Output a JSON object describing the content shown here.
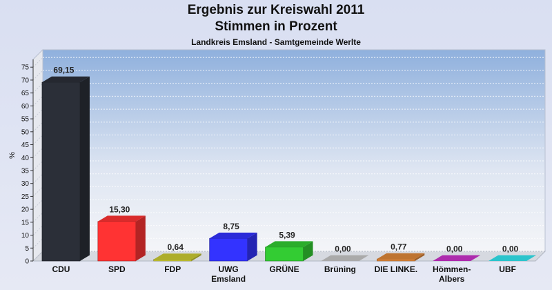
{
  "chart_data": {
    "type": "bar",
    "title": "Ergebnis zur Kreiswahl 2011",
    "subtitle": "Stimmen in Prozent",
    "caption": "Landkreis Emsland - Samtgemeinde Werlte",
    "ylabel": "%",
    "ylim": [
      0,
      78
    ],
    "yticks": [
      0,
      5,
      10,
      15,
      20,
      25,
      30,
      35,
      40,
      45,
      50,
      55,
      60,
      65,
      70,
      75
    ],
    "categories": [
      "CDU",
      "SPD",
      "FDP",
      "UWG\nEmsland",
      "GRÜNE",
      "Brüning",
      "DIE LINKE.",
      "Hömmen-\nAlbers",
      "UBF"
    ],
    "values": [
      69.15,
      15.3,
      0.64,
      8.75,
      5.39,
      0.0,
      0.77,
      0.0,
      0.0
    ],
    "value_labels": [
      "69,15",
      "15,30",
      "0,64",
      "8,75",
      "5,39",
      "0,00",
      "0,77",
      "0,00",
      "0,00"
    ],
    "colors": [
      "#2b2f38",
      "#ff3333",
      "#cccc33",
      "#3333ff",
      "#33cc33",
      "#c8c8c8",
      "#e0883a",
      "#cc33cc",
      "#33e6f0"
    ],
    "grid": true
  }
}
